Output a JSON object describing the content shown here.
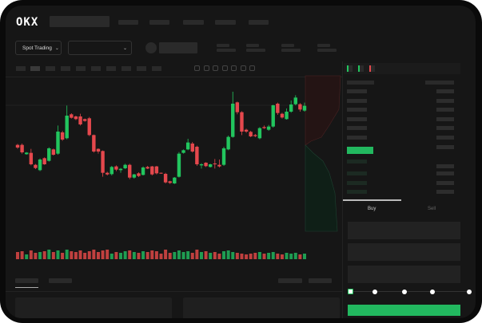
{
  "header": {
    "logo": "OKX",
    "nav_count": 5
  },
  "market": {
    "mode_label": "Spot Trading",
    "mode_icon": "chevron-down-icon",
    "pair_select_icon": "chevron-down-icon"
  },
  "toolbar": {
    "icons": [
      "candle-type-icon",
      "indicator-icon",
      "line-icon",
      "ruler-icon",
      "camera-icon",
      "settings-icon",
      "fullscreen-icon"
    ]
  },
  "orderbook": {
    "view_icons": [
      "both-sides-icon",
      "bids-only-icon",
      "asks-only-icon"
    ]
  },
  "trade": {
    "tabs": [
      {
        "label": "Buy",
        "active": true
      },
      {
        "label": "Sell",
        "active": false
      }
    ],
    "slider_percent": 0
  },
  "colors": {
    "up": "#22c55e",
    "down": "#e5484d",
    "background": "#161616",
    "placeholder": "#2a2a2a"
  },
  "chart_data": {
    "type": "candlestick",
    "ohlc": [
      [
        185,
        189,
        170,
        175
      ],
      [
        185,
        190,
        152,
        157
      ],
      [
        150,
        158,
        148,
        156
      ],
      [
        155,
        170,
        108,
        112
      ],
      [
        110,
        113,
        94,
        98
      ],
      [
        90,
        134,
        86,
        130
      ],
      [
        135,
        138,
        110,
        112
      ],
      [
        125,
        176,
        122,
        172
      ],
      [
        168,
        171,
        145,
        148
      ],
      [
        152,
        258,
        148,
        235
      ],
      [
        232,
        238,
        200,
        205
      ],
      [
        210,
        333,
        206,
        295
      ],
      [
        300,
        304,
        284,
        287
      ],
      [
        292,
        295,
        278,
        282
      ],
      [
        292,
        302,
        258,
        262
      ],
      [
        282,
        284,
        272,
        275
      ],
      [
        285,
        290,
        218,
        222
      ],
      [
        222,
        224,
        156,
        160
      ],
      [
        170,
        172,
        152,
        160
      ],
      [
        162,
        164,
        65,
        80
      ],
      [
        80,
        84,
        70,
        74
      ],
      [
        75,
        106,
        70,
        102
      ],
      [
        104,
        108,
        86,
        92
      ],
      [
        90,
        98,
        80,
        95
      ],
      [
        97,
        114,
        94,
        110
      ],
      [
        110,
        114,
        56,
        62
      ],
      [
        62,
        76,
        58,
        74
      ],
      [
        78,
        82,
        64,
        68
      ],
      [
        72,
        104,
        70,
        100
      ],
      [
        102,
        106,
        94,
        96
      ],
      [
        104,
        106,
        70,
        74
      ],
      [
        104,
        106,
        74,
        78
      ],
      [
        80,
        81,
        76,
        78
      ],
      [
        76,
        80,
        40,
        44
      ],
      [
        48,
        50,
        38,
        42
      ],
      [
        40,
        64,
        38,
        62
      ],
      [
        65,
        158,
        62,
        152
      ],
      [
        155,
        168,
        152,
        165
      ],
      [
        168,
        208,
        165,
        194
      ],
      [
        190,
        196,
        156,
        160
      ],
      [
        178,
        182,
        106,
        112
      ],
      [
        108,
        116,
        96,
        112
      ],
      [
        118,
        120,
        102,
        105
      ],
      [
        102,
        114,
        100,
        112
      ],
      [
        115,
        132,
        96,
        112
      ],
      [
        110,
        130,
        100,
        104
      ],
      [
        110,
        178,
        106,
        172
      ],
      [
        168,
        220,
        165,
        215
      ],
      [
        215,
        385,
        212,
        340
      ],
      [
        345,
        348,
        300,
        308
      ],
      [
        308,
        312,
        222,
        235
      ],
      [
        242,
        246,
        230,
        235
      ],
      [
        234,
        238,
        214,
        217
      ],
      [
        222,
        226,
        214,
        218
      ],
      [
        210,
        252,
        206,
        248
      ],
      [
        252,
        258,
        245,
        248
      ],
      [
        242,
        260,
        238,
        254
      ],
      [
        254,
        336,
        250,
        334
      ],
      [
        340,
        344,
        298,
        305
      ],
      [
        302,
        306,
        284,
        288
      ],
      [
        282,
        322,
        280,
        310
      ],
      [
        310,
        352,
        306,
        337
      ],
      [
        338,
        372,
        334,
        363
      ],
      [
        338,
        342,
        310,
        318
      ],
      [
        314,
        344,
        310,
        332
      ]
    ],
    "volume": [
      9,
      10,
      6,
      11,
      8,
      9,
      10,
      12,
      9,
      11,
      8,
      12,
      10,
      9,
      11,
      8,
      10,
      12,
      9,
      11,
      12,
      7,
      9,
      8,
      10,
      11,
      9,
      8,
      10,
      9,
      11,
      10,
      7,
      12,
      8,
      9,
      11,
      9,
      10,
      8,
      12,
      9,
      10,
      8,
      9,
      7,
      10,
      11,
      9,
      8,
      7,
      6,
      7,
      8,
      9,
      7,
      8,
      9,
      7,
      6,
      8,
      7,
      8,
      6,
      7
    ]
  }
}
